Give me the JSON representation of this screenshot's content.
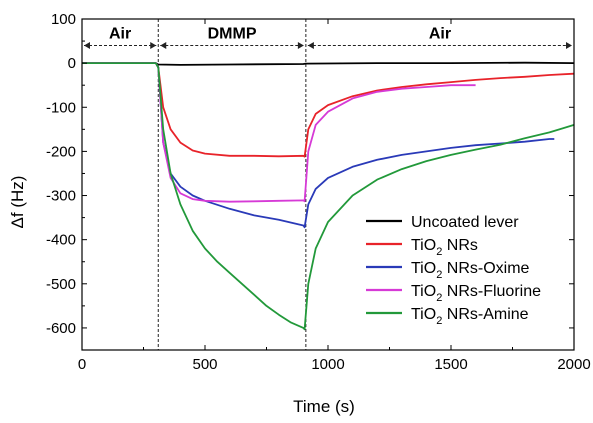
{
  "chart_data": {
    "type": "line",
    "xlabel": "Time (s)",
    "ylabel": "Δf (Hz)",
    "xlim": [
      0,
      2000
    ],
    "ylim": [
      -650,
      100
    ],
    "xticks": [
      0,
      500,
      1000,
      1500,
      2000
    ],
    "yticks": [
      100,
      0,
      -100,
      -200,
      -300,
      -400,
      -500,
      -600
    ],
    "grid": false,
    "legend_position": "bottom-right",
    "regions": [
      {
        "label": "Air",
        "start": 0,
        "end": 310
      },
      {
        "label": "DMMP",
        "start": 310,
        "end": 910
      },
      {
        "label": "Air",
        "start": 910,
        "end": 2000
      }
    ],
    "series": [
      {
        "name": "Uncoated lever",
        "color": "#000000",
        "x": [
          0,
          300,
          310,
          400,
          600,
          900,
          910,
          1200,
          1500,
          1800,
          2000
        ],
        "y": [
          0,
          0,
          -3,
          -4,
          -3,
          -2,
          -1,
          0,
          0,
          1,
          0
        ]
      },
      {
        "name": "TiO2 NRs",
        "color": "#e8232a",
        "x": [
          0,
          300,
          310,
          330,
          360,
          400,
          450,
          500,
          600,
          700,
          800,
          900,
          905,
          920,
          950,
          1000,
          1100,
          1200,
          1300,
          1400,
          1500,
          1600,
          1700,
          1800,
          1900,
          2000
        ],
        "y": [
          0,
          0,
          -10,
          -100,
          -150,
          -180,
          -198,
          -205,
          -210,
          -210,
          -211,
          -210,
          -212,
          -150,
          -115,
          -95,
          -75,
          -62,
          -54,
          -48,
          -43,
          -38,
          -34,
          -31,
          -27,
          -24
        ]
      },
      {
        "name": "TiO2 NRs-Oxime",
        "color": "#2a3ab8",
        "x": [
          0,
          300,
          310,
          330,
          360,
          400,
          450,
          500,
          600,
          700,
          800,
          900,
          905,
          920,
          950,
          1000,
          1100,
          1200,
          1300,
          1400,
          1500,
          1600,
          1700,
          1800,
          1900,
          1920
        ],
        "y": [
          0,
          0,
          -10,
          -180,
          -250,
          -280,
          -300,
          -312,
          -330,
          -345,
          -355,
          -368,
          -372,
          -320,
          -285,
          -260,
          -235,
          -219,
          -208,
          -200,
          -192,
          -186,
          -182,
          -178,
          -172,
          -172
        ]
      },
      {
        "name": "TiO2 NRs-Fluorine",
        "color": "#d63ad6",
        "x": [
          0,
          300,
          310,
          330,
          360,
          400,
          450,
          500,
          600,
          700,
          800,
          900,
          905,
          920,
          950,
          1000,
          1100,
          1200,
          1300,
          1400,
          1500,
          1600
        ],
        "y": [
          0,
          0,
          -10,
          -180,
          -260,
          -295,
          -308,
          -312,
          -314,
          -313,
          -312,
          -311,
          -313,
          -200,
          -140,
          -110,
          -80,
          -65,
          -58,
          -54,
          -50,
          -50
        ]
      },
      {
        "name": "TiO2 NRs-Amine",
        "color": "#22993a",
        "x": [
          0,
          300,
          310,
          330,
          360,
          400,
          450,
          500,
          550,
          600,
          650,
          700,
          750,
          800,
          850,
          900,
          905,
          920,
          950,
          1000,
          1100,
          1200,
          1300,
          1400,
          1500,
          1600,
          1700,
          1800,
          1900,
          2000
        ],
        "y": [
          0,
          0,
          -10,
          -150,
          -250,
          -320,
          -380,
          -420,
          -450,
          -475,
          -500,
          -525,
          -550,
          -570,
          -588,
          -600,
          -603,
          -500,
          -420,
          -360,
          -300,
          -264,
          -240,
          -222,
          -208,
          -196,
          -185,
          -170,
          -157,
          -140
        ]
      }
    ]
  },
  "legend": [
    {
      "main": "Uncoated lever",
      "sub": "",
      "rest": ""
    },
    {
      "main": "TiO",
      "sub": "2",
      "rest": " NRs"
    },
    {
      "main": "TiO",
      "sub": "2",
      "rest": " NRs-Oxime"
    },
    {
      "main": "TiO",
      "sub": "2",
      "rest": " NRs-Fluorine"
    },
    {
      "main": "TiO",
      "sub": "2",
      "rest": " NRs-Amine"
    }
  ]
}
